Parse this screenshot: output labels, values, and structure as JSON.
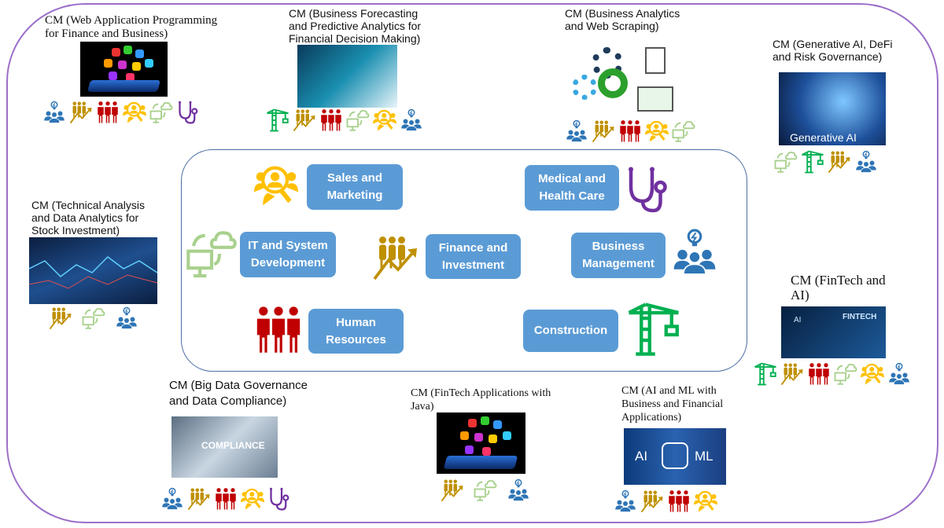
{
  "colors": {
    "outer_border": "#9B6FC9",
    "inner_border": "#4A6FA5",
    "category_box": "#5B9BD5",
    "management": "#2E75B6",
    "finance": "#BF9000",
    "hr": "#C00000",
    "sales": "#FFC000",
    "it": "#A9D18E",
    "medical": "#7030A0",
    "construction": "#00B050"
  },
  "categories": {
    "sales": "Sales and Marketing",
    "medical": "Medical and Health Care",
    "it": "IT and System Development",
    "finance": "Finance and Investment",
    "management": "Business Management",
    "hr": "Human Resources",
    "construction": "Construction"
  },
  "modules": [
    {
      "title": "CM (Web Application Programming for Finance and Business)",
      "icons": [
        "management",
        "finance",
        "hr",
        "sales",
        "it",
        "medical"
      ]
    },
    {
      "title": "CM (Business Forecasting and Predictive Analytics for Financial Decision Making)",
      "icons": [
        "construction",
        "finance",
        "hr",
        "it",
        "sales",
        "management"
      ]
    },
    {
      "title": "CM (Business Analytics and Web Scraping)",
      "icons": [
        "management",
        "finance",
        "hr",
        "sales",
        "it"
      ]
    },
    {
      "title": "CM (Generative AI, DeFi and Risk Governance)",
      "image_text": "Generative AI",
      "icons": [
        "it",
        "construction",
        "finance",
        "management"
      ]
    },
    {
      "title": "CM (Technical Analysis and Data Analytics for Stock Investment)",
      "icons": [
        "finance",
        "it",
        "management"
      ]
    },
    {
      "title": "CM (FinTech and AI)",
      "image_text": "FINTECH",
      "image_text2": "AI",
      "icons": [
        "construction",
        "finance",
        "hr",
        "it",
        "sales",
        "management"
      ]
    },
    {
      "title": "CM (Big Data Governance and Data Compliance)",
      "image_text": "COMPLIANCE",
      "icons": [
        "management",
        "finance",
        "hr",
        "sales",
        "medical"
      ]
    },
    {
      "title": "CM (FinTech Applications with Java)",
      "icons": [
        "finance",
        "it",
        "management"
      ]
    },
    {
      "title": "CM (AI and ML with Business and Financial Applications)",
      "image_text": "AI",
      "image_text2": "ML",
      "icons": [
        "management",
        "finance",
        "hr",
        "sales"
      ]
    }
  ]
}
